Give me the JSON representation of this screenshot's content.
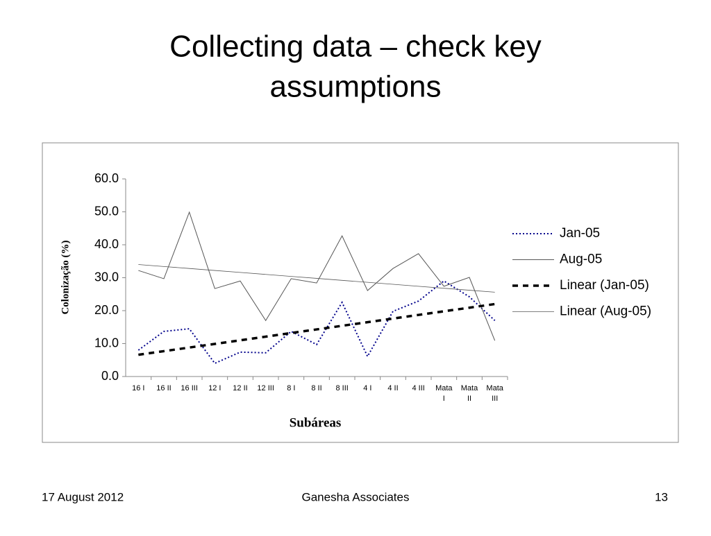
{
  "title": [
    "Collecting data – check key",
    "assumptions"
  ],
  "footer": {
    "date": "17 August 2012",
    "company": "Ganesha Associates",
    "page": "13"
  },
  "chart_data": {
    "type": "line",
    "y_label": "Colonização (%)",
    "x_label": "Subáreas",
    "categories": [
      "16 I",
      "16 II",
      "16 III",
      "12 I",
      "12 II",
      "12 III",
      "8 I",
      "8 II",
      "8 III",
      "4 I",
      "4 II",
      "4 III",
      "Mata I",
      "Mata II",
      "Mata III"
    ],
    "ylim": [
      0,
      60
    ],
    "yticks": [
      {
        "value": 0,
        "label": "0.0"
      },
      {
        "value": 10,
        "label": "10.0"
      },
      {
        "value": 20,
        "label": "20.0"
      },
      {
        "value": 30,
        "label": "30.0"
      },
      {
        "value": 40,
        "label": "40.0"
      },
      {
        "value": 50,
        "label": "50.0"
      },
      {
        "value": 60,
        "label": "60.0"
      }
    ],
    "legend": "right",
    "series": [
      {
        "name": "Jan-05",
        "color": "#00008b",
        "style": "dotted",
        "values": [
          8.0,
          13.7,
          14.5,
          4.0,
          7.4,
          7.2,
          13.7,
          9.7,
          22.5,
          6.1,
          19.8,
          22.9,
          29.0,
          24.2,
          17.0
        ]
      },
      {
        "name": "Aug-05",
        "color": "#555555",
        "style": "solid",
        "values": [
          32.2,
          29.7,
          49.9,
          26.7,
          29.0,
          17.0,
          29.7,
          28.4,
          42.7,
          26.1,
          32.8,
          37.3,
          27.4,
          30.1,
          10.9
        ]
      },
      {
        "name": "Linear (Jan-05)",
        "color": "#000000",
        "style": "dashed",
        "values": [
          6.6,
          7.7,
          8.8,
          9.9,
          11.0,
          12.1,
          13.2,
          14.3,
          15.4,
          16.5,
          17.6,
          18.7,
          19.8,
          20.9,
          22.0
        ]
      },
      {
        "name": "Linear (Aug-05)",
        "color": "#555555",
        "style": "thin",
        "values": [
          34.0,
          33.4,
          32.8,
          32.2,
          31.6,
          31.0,
          30.4,
          29.8,
          29.2,
          28.6,
          28.0,
          27.4,
          26.8,
          26.2,
          25.6
        ]
      }
    ]
  }
}
